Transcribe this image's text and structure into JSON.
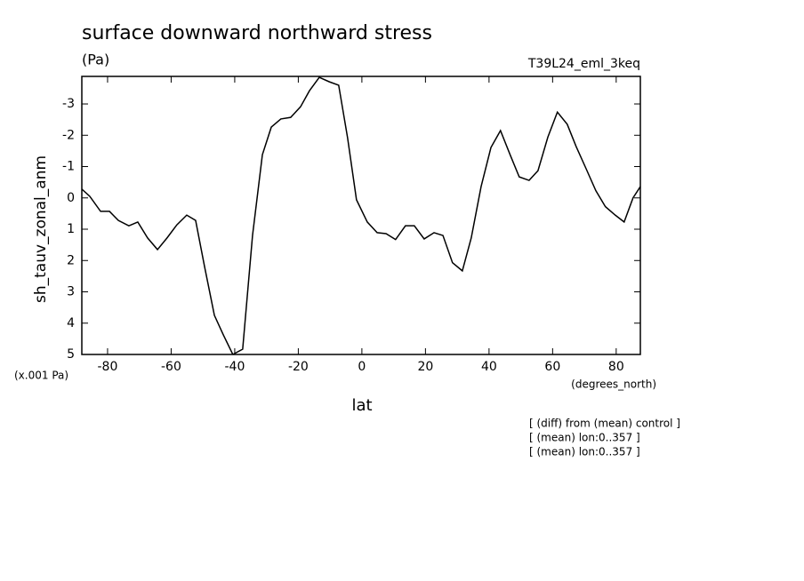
{
  "chart_data": {
    "type": "line",
    "title": "surface downward northward stress",
    "units": "(Pa)",
    "run": "T39L24_eml_3keq",
    "y_label": "sh_tauv_zonal_anm",
    "y_scale_note": "(x.001 Pa)",
    "x_units": "(degrees_north)",
    "x_label": "lat",
    "notes": [
      "[ (diff) from (mean) control ]",
      "[ (mean) lon:0..357 ]",
      "[ (mean) lon:0..357 ]"
    ],
    "x": [
      -88.1,
      -85.6,
      -82.2,
      -79.4,
      -76.6,
      -73.3,
      -70.5,
      -67.4,
      -64.3,
      -61.3,
      -58.2,
      -55.1,
      -52.3,
      -49.5,
      -46.4,
      -43.6,
      -40.6,
      -37.5,
      -34.4,
      -31.3,
      -28.5,
      -25.5,
      -22.4,
      -19.3,
      -16.5,
      -13.4,
      -10.3,
      -7.3,
      -4.5,
      -1.7,
      1.7,
      4.8,
      7.6,
      10.6,
      13.7,
      16.5,
      19.6,
      22.7,
      25.5,
      28.5,
      31.6,
      34.4,
      37.5,
      40.6,
      43.6,
      46.7,
      49.5,
      52.6,
      55.4,
      58.5,
      61.5,
      64.6,
      67.4,
      70.5,
      73.6,
      76.6,
      79.7,
      82.5,
      85.3,
      87.6
    ],
    "series": [
      {
        "color": "#000000",
        "values": [
          -0.28,
          -0.05,
          0.43,
          0.43,
          0.72,
          0.89,
          0.77,
          1.28,
          1.65,
          1.28,
          0.86,
          0.55,
          0.72,
          2.19,
          3.75,
          4.37,
          5.0,
          4.83,
          1.2,
          -1.38,
          -2.26,
          -2.52,
          -2.57,
          -2.91,
          -3.42,
          -3.85,
          -3.71,
          -3.6,
          -1.92,
          0.06,
          0.77,
          1.11,
          1.14,
          1.33,
          0.89,
          0.89,
          1.31,
          1.11,
          1.2,
          2.07,
          2.33,
          1.28,
          -0.36,
          -1.61,
          -2.15,
          -1.36,
          -0.67,
          -0.56,
          -0.87,
          -1.94,
          -2.74,
          -2.35,
          -1.64,
          -0.94,
          -0.23,
          0.28,
          0.55,
          0.77,
          0.0,
          -0.36
        ]
      }
    ],
    "xlim": [
      -88.1,
      87.6
    ],
    "xticks": [
      -80,
      -60,
      -40,
      -20,
      0,
      20,
      40,
      60,
      80
    ],
    "ylim": [
      5,
      -3.88
    ],
    "yticks": [
      -3,
      -2,
      -1,
      0,
      1,
      2,
      3,
      4,
      5
    ]
  }
}
